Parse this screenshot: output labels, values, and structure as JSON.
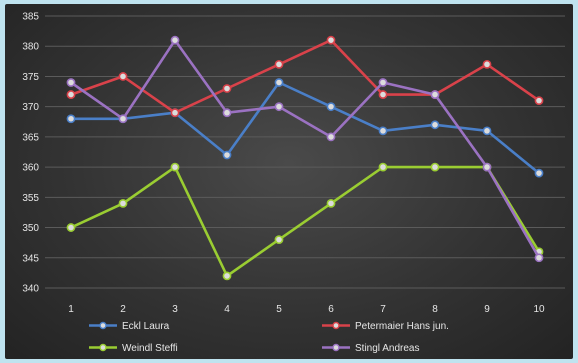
{
  "chart_data": {
    "type": "line",
    "title": "",
    "xlabel": "",
    "ylabel": "",
    "x": [
      1,
      2,
      3,
      4,
      5,
      6,
      7,
      8,
      9,
      10
    ],
    "ylim": [
      340,
      385
    ],
    "yticks": [
      340,
      345,
      350,
      355,
      360,
      365,
      370,
      375,
      380,
      385
    ],
    "grid": true,
    "legend_position": "bottom",
    "series": [
      {
        "name": "Eckl Laura",
        "color": "#4a7fc8",
        "values": [
          368,
          368,
          369,
          362,
          374,
          370,
          366,
          367,
          366,
          359
        ]
      },
      {
        "name": "Petermaier Hans jun.",
        "color": "#d9424a",
        "values": [
          372,
          375,
          369,
          373,
          377,
          381,
          372,
          372,
          377,
          371
        ]
      },
      {
        "name": "Weindl Steffi",
        "color": "#9acd32",
        "values": [
          350,
          354,
          360,
          342,
          348,
          354,
          360,
          360,
          360,
          346
        ]
      },
      {
        "name": "Stingl Andreas",
        "color": "#9b72c2",
        "values": [
          374,
          368,
          381,
          369,
          370,
          365,
          374,
          372,
          360,
          345
        ]
      }
    ]
  }
}
